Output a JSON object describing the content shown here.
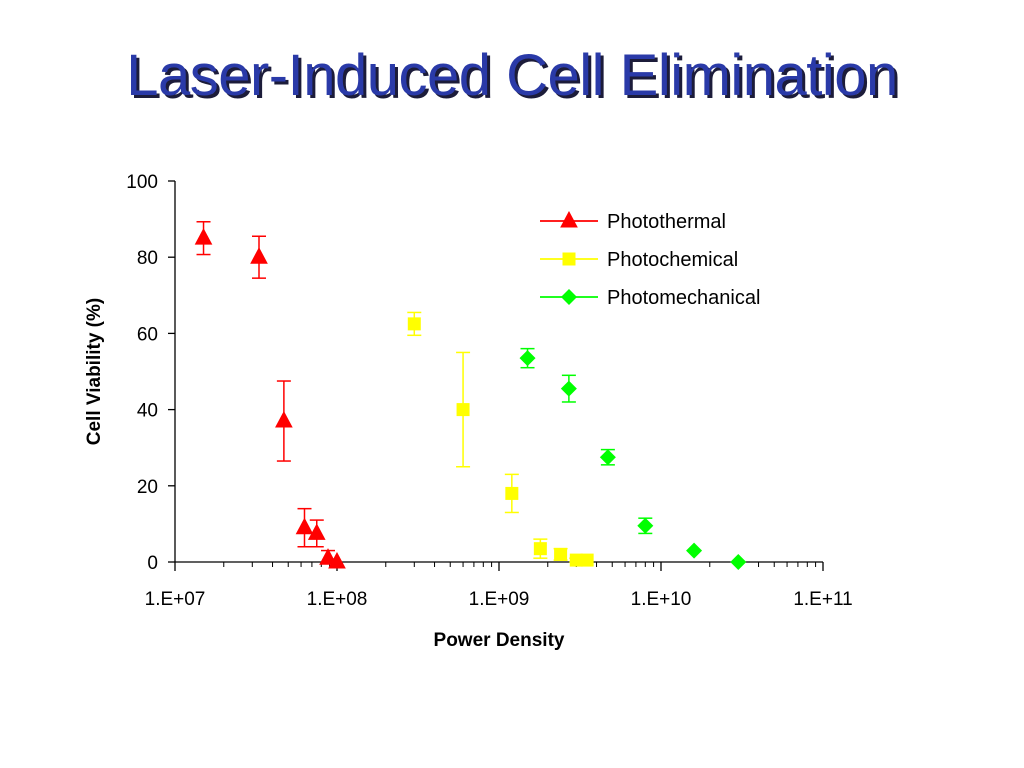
{
  "title": "Laser-Induced Cell Elimination",
  "colors": {
    "title": "#2a3aa8",
    "Photothermal": "#ff0000",
    "Photochemical": "#ffff00",
    "Photomechanical": "#00ff00"
  },
  "chart_data": {
    "type": "scatter",
    "x_scale": "log",
    "xlabel": "Power Density",
    "ylabel": "Cell Viability (%)",
    "xlim": [
      10000000,
      100000000000
    ],
    "ylim": [
      0,
      100
    ],
    "x_ticks": [
      10000000,
      100000000,
      1000000000,
      10000000000,
      100000000000
    ],
    "x_tick_labels": [
      "1.E+07",
      "1.E+08",
      "1.E+09",
      "1.E+10",
      "1.E+11"
    ],
    "y_ticks": [
      0,
      20,
      40,
      60,
      80,
      100
    ],
    "y_tick_labels": [
      "0",
      "20",
      "40",
      "60",
      "80",
      "100"
    ],
    "grid": false,
    "legend_position": "top-right",
    "series": [
      {
        "name": "Photothermal",
        "marker": "triangle",
        "points": [
          {
            "x": 15000000,
            "y": 85,
            "err": 4.3
          },
          {
            "x": 33000000,
            "y": 80,
            "err": 5.5
          },
          {
            "x": 47000000,
            "y": 37,
            "err": 10.5
          },
          {
            "x": 63000000,
            "y": 9,
            "err": 5
          },
          {
            "x": 75000000,
            "y": 7.5,
            "err": 3.5
          },
          {
            "x": 88000000,
            "y": 1,
            "err": 2
          },
          {
            "x": 100000000,
            "y": 0,
            "err": 0
          }
        ]
      },
      {
        "name": "Photochemical",
        "marker": "square",
        "points": [
          {
            "x": 300000000,
            "y": 62.5,
            "err": 3
          },
          {
            "x": 600000000,
            "y": 40,
            "err": 15
          },
          {
            "x": 1200000000,
            "y": 18,
            "err": 5
          },
          {
            "x": 1800000000,
            "y": 3.5,
            "err": 2.5
          },
          {
            "x": 2400000000,
            "y": 2,
            "err": 1.5
          },
          {
            "x": 3000000000,
            "y": 0.5,
            "err": 0.5
          },
          {
            "x": 3500000000,
            "y": 0.5,
            "err": 0
          }
        ]
      },
      {
        "name": "Photomechanical",
        "marker": "diamond",
        "points": [
          {
            "x": 1500000000,
            "y": 53.5,
            "err": 2.5
          },
          {
            "x": 2700000000,
            "y": 45.5,
            "err": 3.5
          },
          {
            "x": 4700000000,
            "y": 27.5,
            "err": 2
          },
          {
            "x": 8000000000,
            "y": 9.5,
            "err": 2
          },
          {
            "x": 16000000000,
            "y": 3,
            "err": 0
          },
          {
            "x": 30000000000,
            "y": 0,
            "err": 0
          }
        ]
      }
    ]
  }
}
